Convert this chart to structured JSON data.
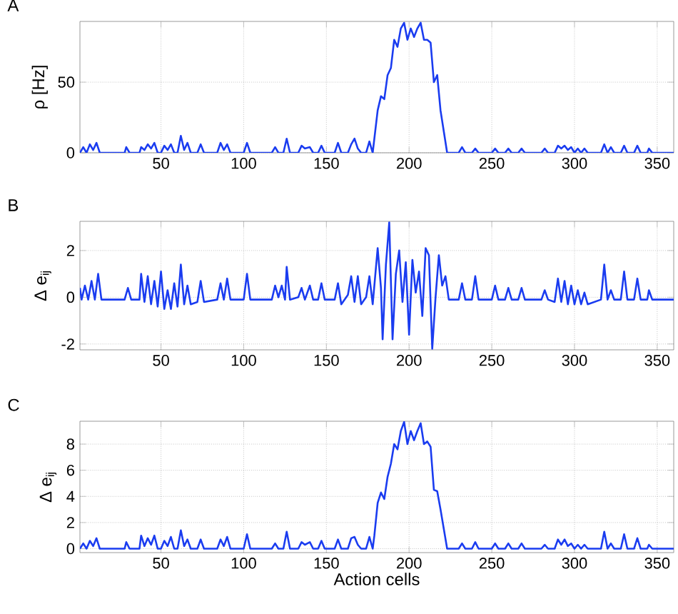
{
  "chart_data": [
    {
      "type": "line",
      "title": "A",
      "ylabel": "ρ [Hz]",
      "xlim": [
        1,
        360
      ],
      "xticks": [
        50,
        100,
        150,
        200,
        250,
        300,
        350
      ],
      "ylim": [
        0,
        93
      ],
      "yticks": [
        0,
        50
      ],
      "grid": true,
      "marker": "none",
      "line_style": "solid",
      "x": [
        1,
        3,
        5,
        7,
        9,
        11,
        13,
        28,
        29,
        31,
        37,
        38,
        40,
        42,
        44,
        46,
        48,
        50,
        52,
        54,
        56,
        58,
        60,
        62,
        64,
        66,
        68,
        72,
        74,
        76,
        84,
        86,
        88,
        90,
        92,
        100,
        102,
        104,
        117,
        119,
        121,
        124,
        126,
        128,
        133,
        135,
        137,
        140,
        142,
        145,
        147,
        149,
        155,
        157,
        159,
        163,
        165,
        167,
        169,
        171,
        174,
        176,
        178,
        179,
        181,
        183,
        185,
        187,
        189,
        191,
        193,
        195,
        197,
        199,
        201,
        203,
        205,
        207,
        209,
        211,
        213,
        215,
        217,
        219,
        221,
        223,
        230,
        232,
        234,
        238,
        240,
        242,
        250,
        252,
        254,
        258,
        260,
        262,
        266,
        268,
        270,
        280,
        282,
        284,
        288,
        290,
        292,
        294,
        296,
        298,
        300,
        302,
        304,
        306,
        308,
        316,
        318,
        320,
        322,
        324,
        328,
        330,
        332,
        336,
        338,
        340,
        344,
        345,
        347,
        360
      ],
      "series": [
        {
          "color": "#1a3cf0",
          "values": [
            0,
            4,
            0,
            6,
            2,
            7,
            0,
            0,
            4,
            0,
            0,
            4,
            2,
            6,
            3,
            7,
            0,
            0,
            5,
            2,
            6,
            0,
            0,
            12,
            2,
            7,
            0,
            0,
            6,
            0,
            0,
            7,
            2,
            6,
            0,
            0,
            7,
            0,
            0,
            4,
            0,
            0,
            10,
            0,
            0,
            5,
            3,
            4,
            0,
            0,
            5,
            0,
            0,
            7,
            0,
            0,
            6,
            10,
            3,
            0,
            0,
            8,
            0,
            10,
            30,
            40,
            38,
            55,
            60,
            80,
            75,
            88,
            92,
            80,
            88,
            82,
            88,
            92,
            80,
            80,
            78,
            50,
            55,
            30,
            15,
            0,
            0,
            4,
            0,
            0,
            3,
            0,
            0,
            3,
            0,
            0,
            3,
            0,
            0,
            3,
            0,
            0,
            3,
            0,
            0,
            5,
            3,
            5,
            2,
            4,
            0,
            3,
            0,
            3,
            0,
            0,
            6,
            0,
            4,
            0,
            0,
            5,
            0,
            0,
            5,
            0,
            0,
            3,
            0,
            0
          ]
        }
      ]
    },
    {
      "type": "line",
      "title": "B",
      "ylabel": "Δ e$_{ij}$",
      "xlim": [
        1,
        360
      ],
      "xticks": [
        50,
        100,
        150,
        200,
        250,
        300,
        350
      ],
      "ylim": [
        -2.25,
        3.25
      ],
      "yticks": [
        -2,
        0,
        2
      ],
      "grid": true,
      "marker": "none",
      "line_style": "solid",
      "x": [
        1,
        2,
        4,
        6,
        8,
        10,
        12,
        14,
        28,
        30,
        32,
        37,
        38,
        40,
        42,
        44,
        46,
        48,
        50,
        52,
        54,
        56,
        58,
        60,
        62,
        64,
        66,
        68,
        72,
        74,
        76,
        84,
        86,
        88,
        90,
        92,
        100,
        102,
        104,
        117,
        119,
        121,
        123,
        125,
        126,
        128,
        133,
        135,
        137,
        140,
        142,
        145,
        147,
        149,
        155,
        157,
        159,
        163,
        165,
        167,
        169,
        171,
        174,
        176,
        178,
        181,
        183,
        184,
        186,
        188,
        190,
        192,
        194,
        196,
        198,
        200,
        202,
        204,
        206,
        208,
        210,
        212,
        214,
        216,
        218,
        220,
        222,
        224,
        230,
        232,
        234,
        238,
        240,
        242,
        250,
        252,
        254,
        258,
        260,
        262,
        266,
        268,
        270,
        280,
        282,
        284,
        288,
        290,
        292,
        294,
        296,
        298,
        300,
        302,
        304,
        306,
        308,
        316,
        318,
        320,
        322,
        324,
        328,
        330,
        332,
        336,
        338,
        340,
        344,
        345,
        347,
        360
      ],
      "series": [
        {
          "color": "#1a3cf0",
          "values": [
            0.4,
            -0.1,
            0.5,
            -0.1,
            0.7,
            -0.1,
            1.0,
            -0.1,
            -0.1,
            0.4,
            -0.1,
            -0.1,
            1.0,
            -0.2,
            0.9,
            -0.3,
            0.7,
            -0.4,
            1.1,
            -0.5,
            0.3,
            -0.5,
            0.6,
            -0.4,
            1.4,
            -0.3,
            0.5,
            -0.3,
            -0.2,
            0.7,
            -0.2,
            -0.1,
            0.6,
            -0.1,
            0.8,
            -0.1,
            -0.1,
            1.0,
            -0.1,
            -0.1,
            0.5,
            0.0,
            0.5,
            -0.1,
            1.3,
            -0.1,
            0.0,
            0.4,
            -0.1,
            0.5,
            -0.1,
            -0.1,
            0.6,
            -0.1,
            -0.1,
            0.6,
            -0.3,
            0.1,
            0.9,
            -0.2,
            0.9,
            -0.3,
            0.0,
            0.9,
            -0.3,
            2.1,
            0.4,
            -1.8,
            1.4,
            3.2,
            -1.8,
            1.0,
            2.0,
            -0.2,
            1.5,
            -1.6,
            1.6,
            0.2,
            1.1,
            -0.8,
            2.1,
            1.8,
            -2.2,
            0.0,
            1.8,
            0.5,
            0.9,
            -0.1,
            -0.1,
            0.6,
            -0.1,
            -0.1,
            0.9,
            -0.1,
            -0.1,
            0.5,
            -0.1,
            -0.1,
            0.4,
            -0.1,
            -0.1,
            0.4,
            -0.1,
            -0.1,
            0.3,
            -0.1,
            -0.2,
            0.8,
            -0.2,
            0.7,
            -0.3,
            0.5,
            -0.3,
            0.3,
            -0.3,
            0.2,
            -0.3,
            -0.1,
            1.4,
            -0.1,
            0.3,
            -0.1,
            -0.1,
            1.1,
            -0.1,
            -0.1,
            0.8,
            -0.1,
            -0.1,
            0.3,
            -0.1,
            -0.1
          ]
        }
      ]
    },
    {
      "type": "line",
      "title": "C",
      "ylabel": "Δ e$_{ij}$",
      "xlabel": "Action cells",
      "xlim": [
        1,
        360
      ],
      "xticks": [
        50,
        100,
        150,
        200,
        250,
        300,
        350
      ],
      "ylim": [
        -0.3,
        9.75
      ],
      "yticks": [
        0,
        2,
        4,
        6,
        8
      ],
      "grid": true,
      "marker": "none",
      "line_style": "solid",
      "x": [
        1,
        3,
        5,
        7,
        9,
        11,
        13,
        28,
        29,
        31,
        37,
        38,
        40,
        42,
        44,
        46,
        48,
        50,
        52,
        54,
        56,
        58,
        60,
        62,
        64,
        66,
        68,
        72,
        74,
        76,
        84,
        86,
        88,
        90,
        92,
        100,
        102,
        104,
        117,
        119,
        121,
        124,
        126,
        128,
        133,
        135,
        137,
        140,
        142,
        145,
        147,
        149,
        155,
        157,
        159,
        163,
        165,
        167,
        169,
        171,
        174,
        176,
        178,
        179,
        181,
        183,
        185,
        187,
        189,
        191,
        193,
        195,
        197,
        199,
        201,
        203,
        205,
        207,
        209,
        211,
        213,
        215,
        217,
        219,
        221,
        223,
        230,
        232,
        234,
        238,
        240,
        242,
        250,
        252,
        254,
        258,
        260,
        262,
        266,
        268,
        270,
        280,
        282,
        284,
        288,
        290,
        292,
        294,
        296,
        298,
        300,
        302,
        304,
        306,
        308,
        316,
        318,
        320,
        322,
        324,
        328,
        330,
        332,
        336,
        338,
        340,
        344,
        345,
        347,
        360
      ],
      "series": [
        {
          "color": "#1a3cf0",
          "values": [
            0,
            0.4,
            0,
            0.6,
            0.2,
            0.8,
            0,
            0,
            0.5,
            0,
            0,
            1.0,
            0.2,
            0.8,
            0.3,
            1.0,
            0,
            0,
            0.6,
            0.2,
            0.9,
            0,
            0,
            1.4,
            0.2,
            0.7,
            0,
            0,
            0.7,
            0,
            0,
            0.7,
            0.2,
            0.9,
            0,
            0,
            1.1,
            0,
            0,
            0.4,
            0,
            0,
            1.3,
            0,
            0,
            0.5,
            0.3,
            0.5,
            0,
            0,
            0.6,
            0,
            0,
            0.7,
            0,
            0,
            0.8,
            0.9,
            0.3,
            0,
            0,
            0.9,
            0,
            1.0,
            3.5,
            4.3,
            3.8,
            5.5,
            6.5,
            8.0,
            7.6,
            9.0,
            9.7,
            8.0,
            9.0,
            8.3,
            9.0,
            9.6,
            8.0,
            8.2,
            7.8,
            4.5,
            4.4,
            3.0,
            1.5,
            0,
            0,
            0.4,
            0,
            0,
            0.5,
            0,
            0,
            0.4,
            0,
            0,
            0.4,
            0,
            0,
            0.4,
            0,
            0,
            0.3,
            0,
            0,
            0.7,
            0.3,
            0.7,
            0.2,
            0.4,
            0,
            0.3,
            0,
            0.3,
            0,
            0,
            1.3,
            0,
            0.4,
            0,
            0,
            1.1,
            0,
            0,
            0.8,
            0,
            0,
            0.3,
            0,
            0
          ]
        }
      ]
    }
  ]
}
